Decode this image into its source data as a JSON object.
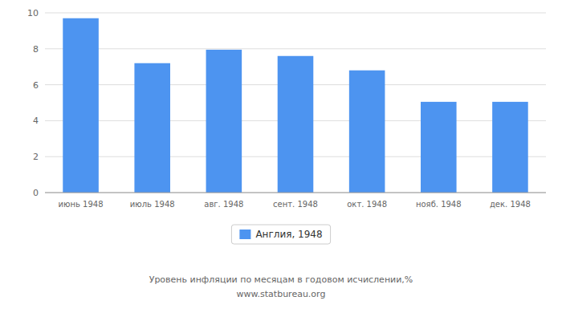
{
  "chart_data": {
    "type": "bar",
    "categories": [
      "июнь 1948",
      "июль 1948",
      "авг. 1948",
      "сент. 1948",
      "окт. 1948",
      "нояб. 1948",
      "дек. 1948"
    ],
    "series": [
      {
        "name": "Англия, 1948",
        "color": "#4d94f0",
        "values": [
          9.7,
          7.2,
          7.95,
          7.6,
          6.8,
          5.05,
          5.05
        ]
      }
    ],
    "ylim": [
      0,
      10
    ],
    "yticks": [
      0,
      2,
      4,
      6,
      8,
      10
    ],
    "grid": true,
    "legend": "bottom",
    "annotations": [
      "Уровень инфляции по месяцам в годовом исчислении,%",
      "www.statbureau.org"
    ]
  }
}
